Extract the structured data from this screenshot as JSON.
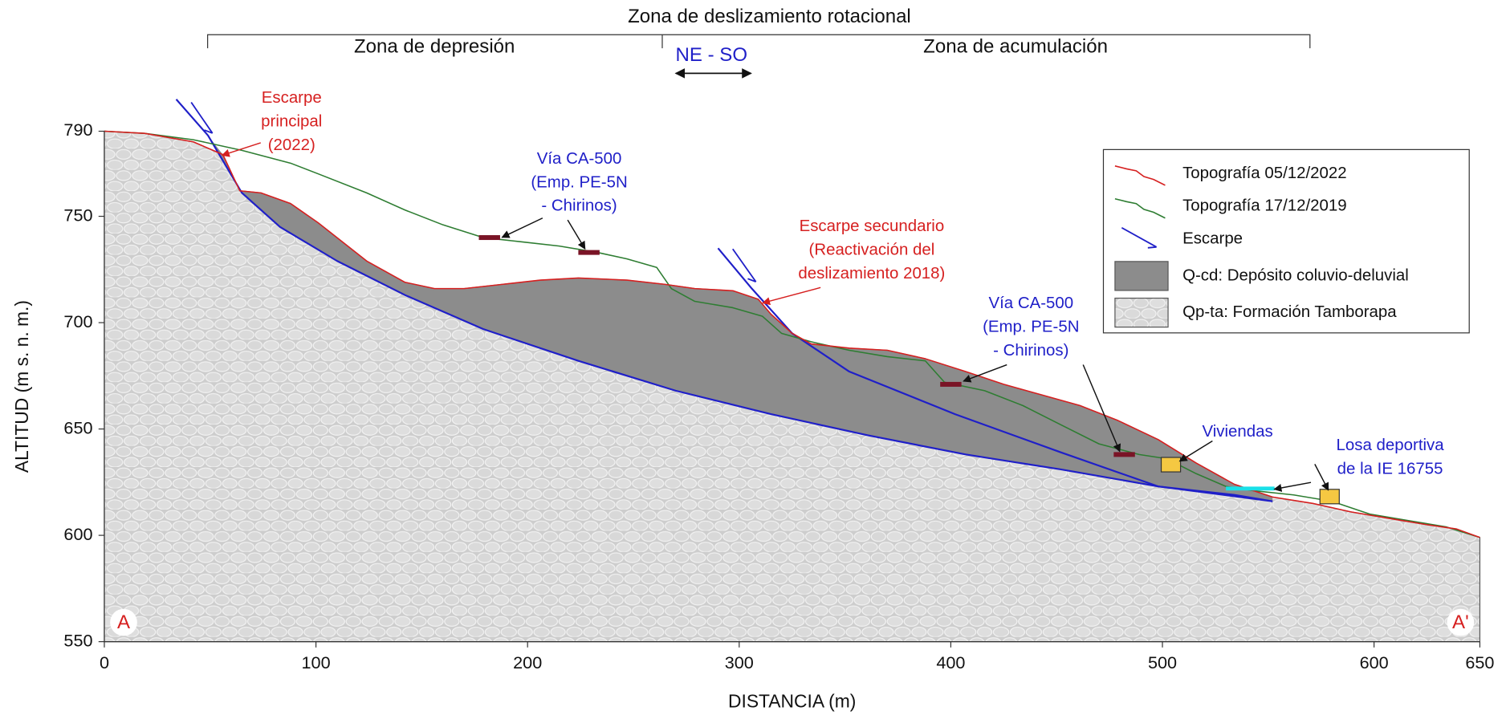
{
  "chart_data": {
    "type": "line",
    "title": "Zona de deslizamiento rotacional",
    "zones": [
      "Zona de depresión",
      "Zona de acumulación"
    ],
    "direction": "NE - SO",
    "section_ends": [
      "A",
      "A'"
    ],
    "xlabel": "DISTANCIA (m)",
    "ylabel": "ALTITUD (m s. n. m.)",
    "xlim": [
      0,
      650
    ],
    "xticks": [
      0,
      100,
      200,
      300,
      400,
      500,
      600,
      650
    ],
    "ylim": [
      550,
      790
    ],
    "yticks": [
      550,
      600,
      650,
      700,
      750,
      790
    ],
    "series": [
      {
        "name": "Topografía 05/12/2022",
        "color": "#d62020",
        "x": [
          0,
          19,
          42,
          56,
          64,
          74,
          88,
          101,
          124,
          142,
          156,
          170,
          188,
          206,
          224,
          247,
          265,
          279,
          297,
          309,
          315,
          325,
          334,
          352,
          370,
          388,
          407,
          425,
          443,
          461,
          479,
          498,
          516,
          534,
          552,
          571,
          589,
          607,
          625,
          639,
          650
        ],
        "values": [
          790,
          789,
          785,
          779,
          762,
          761,
          756,
          747,
          729,
          719,
          716,
          716,
          718,
          720,
          721,
          720,
          718,
          716,
          715,
          711,
          704,
          695,
          690,
          688,
          687,
          683,
          677,
          671,
          666,
          661,
          654,
          645,
          634,
          624,
          618,
          615,
          611,
          608,
          605,
          603,
          599
        ]
      },
      {
        "name": "Topografía 17/12/2019",
        "color": "#2e7d32",
        "x": [
          0,
          19,
          42,
          65,
          88,
          101,
          124,
          142,
          160,
          179,
          197,
          215,
          233,
          247,
          261,
          268,
          279,
          297,
          311,
          320,
          334,
          352,
          370,
          388,
          397,
          416,
          434,
          452,
          470,
          489,
          502,
          516,
          530,
          543,
          562,
          580,
          598,
          616,
          634,
          650
        ],
        "values": [
          790,
          789,
          786,
          781,
          775,
          770,
          761,
          753,
          746,
          740,
          738,
          736,
          733,
          730,
          726,
          716,
          710,
          707,
          703,
          695,
          691,
          687,
          684,
          682,
          672,
          668,
          661,
          652,
          643,
          638,
          636,
          629,
          623,
          621,
          619,
          616,
          610,
          607,
          604,
          599
        ]
      },
      {
        "name": "Escarpe",
        "color": "#1f1fc8",
        "x": [
          34,
          49,
          65,
          83,
          110,
          142,
          179,
          224,
          270,
          315,
          361,
          407,
          452,
          498,
          534,
          552
        ],
        "values": [
          805,
          788,
          761,
          745,
          729,
          713,
          697,
          682,
          668,
          657,
          647,
          638,
          631,
          623,
          619,
          616
        ]
      },
      {
        "color": "#1f1fc8",
        "x": [
          290,
          306,
          325,
          352,
          402,
          452,
          498,
          552
        ],
        "values": [
          735,
          716,
          695,
          677,
          657,
          639,
          623,
          616
        ]
      }
    ],
    "units": [
      {
        "name": "Q-cd: Depósito coluvio-deluvial",
        "color": "#8c8c8c"
      },
      {
        "name": "Qp-ta: Formación Tamborapa",
        "color": "#d3d3d3"
      }
    ],
    "annotations": {
      "escarpe_principal": [
        "Escarpe",
        "principal",
        "(2022)"
      ],
      "via_1": [
        "Vía CA-500",
        "(Emp. PE-5N",
        "- Chirinos)"
      ],
      "escarpe_secundario": [
        "Escarpe secundario",
        "(Reactivación del",
        "deslizamiento 2018)"
      ],
      "via_2": [
        "Vía CA-500",
        "(Emp. PE-5N",
        "- Chirinos)"
      ],
      "viviendas": [
        "Viviendas"
      ],
      "losa": [
        "Losa deportiva",
        "de la IE 16755"
      ]
    },
    "roads": {
      "x": [
        182,
        229,
        400,
        482
      ],
      "y": [
        740,
        733,
        671,
        638
      ]
    },
    "houses": {
      "x": [
        504,
        579
      ],
      "y": [
        633,
        618
      ]
    },
    "sports_court": {
      "x": [
        530,
        553
      ],
      "y": 622
    }
  }
}
